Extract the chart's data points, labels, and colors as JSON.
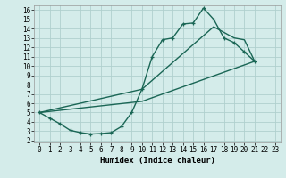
{
  "bg_color": "#d4ecea",
  "grid_color": "#b0d0ce",
  "line_color": "#1a6655",
  "xlim": [
    -0.5,
    23.5
  ],
  "ylim": [
    1.8,
    16.5
  ],
  "xticks": [
    0,
    1,
    2,
    3,
    4,
    5,
    6,
    7,
    8,
    9,
    10,
    11,
    12,
    13,
    14,
    15,
    16,
    17,
    18,
    19,
    20,
    21,
    22,
    23
  ],
  "yticks": [
    2,
    3,
    4,
    5,
    6,
    7,
    8,
    9,
    10,
    11,
    12,
    13,
    14,
    15,
    16
  ],
  "line1_x": [
    0,
    1,
    2,
    3,
    4,
    5,
    6,
    7,
    8,
    9,
    10,
    11,
    12,
    13,
    14,
    15,
    16,
    17,
    18,
    19,
    20,
    21
  ],
  "line1_y": [
    5.0,
    4.4,
    3.8,
    3.1,
    2.85,
    2.7,
    2.75,
    2.85,
    3.5,
    5.0,
    7.5,
    11.0,
    12.8,
    13.0,
    14.5,
    14.6,
    16.2,
    15.0,
    13.0,
    12.5,
    11.5,
    10.5
  ],
  "line2_x": [
    0,
    10,
    21
  ],
  "line2_y": [
    5.0,
    6.2,
    10.5
  ],
  "line3_x": [
    0,
    10,
    17,
    19,
    20,
    21
  ],
  "line3_y": [
    5.0,
    7.5,
    14.2,
    13.0,
    12.8,
    10.5
  ],
  "xlabel": "Humidex (Indice chaleur)",
  "tick_fontsize": 5.5,
  "xlabel_fontsize": 6.5,
  "lw": 1.0,
  "ms": 3.5
}
